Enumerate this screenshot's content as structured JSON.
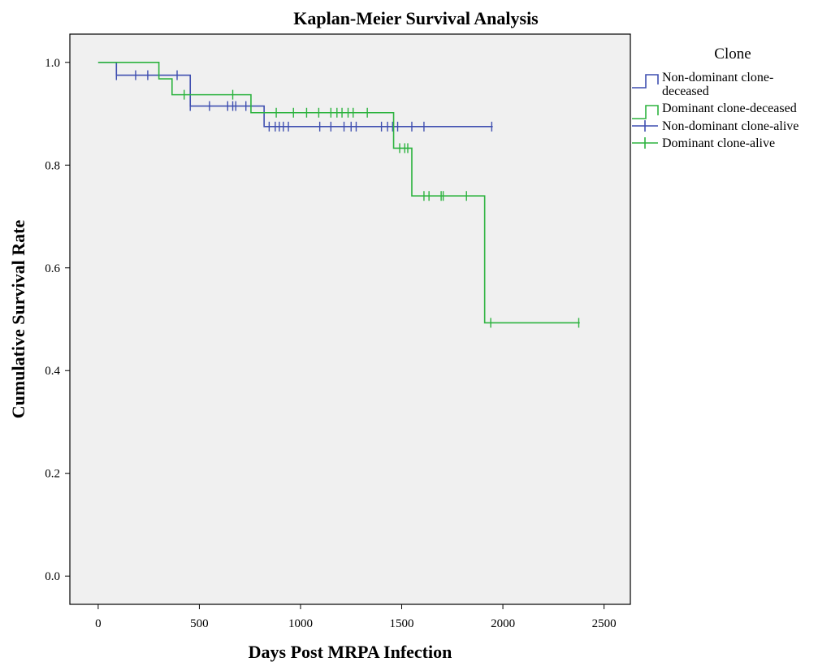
{
  "chart_data": {
    "type": "line",
    "title": "Kaplan-Meier Survival Analysis",
    "xlabel": "Days Post MRPA Infection",
    "ylabel": "Cumulative Survival Rate",
    "xlim": [
      -140,
      2630
    ],
    "ylim": [
      -0.055,
      1.055
    ],
    "x_ticks": [
      0,
      500,
      1000,
      1500,
      2000,
      2500
    ],
    "y_ticks": [
      0.0,
      0.2,
      0.4,
      0.6,
      0.8,
      1.0
    ],
    "x_tick_labels": [
      "0",
      "500",
      "1000",
      "1500",
      "2000",
      "2500"
    ],
    "y_tick_labels": [
      "0.0",
      "0.2",
      "0.4",
      "0.6",
      "0.8",
      "1.0"
    ],
    "grid": false,
    "plot_background": "#f0f0f0",
    "legend": {
      "title": "Clone",
      "placement": "right",
      "entries": [
        {
          "label_lines": [
            "Non-dominant clone-",
            "deceased"
          ],
          "kind": "step",
          "color": "#3f4fb0"
        },
        {
          "label_lines": [
            "Dominant clone-deceased"
          ],
          "kind": "step",
          "color": "#2db33f"
        },
        {
          "label_lines": [
            "Non-dominant clone-alive"
          ],
          "kind": "censor",
          "color": "#3f4fb0"
        },
        {
          "label_lines": [
            "Dominant clone-alive"
          ],
          "kind": "censor",
          "color": "#2db33f"
        }
      ]
    },
    "series": [
      {
        "name": "Non-dominant clone",
        "color": "#3f4fb0",
        "steps": [
          [
            0,
            1.0
          ],
          [
            90,
            0.975
          ],
          [
            455,
            0.915
          ],
          [
            820,
            0.875
          ],
          [
            1950,
            0.875
          ]
        ],
        "censored": [
          [
            90,
            0.975
          ],
          [
            185,
            0.975
          ],
          [
            245,
            0.975
          ],
          [
            390,
            0.975
          ],
          [
            455,
            0.915
          ],
          [
            550,
            0.915
          ],
          [
            640,
            0.915
          ],
          [
            665,
            0.915
          ],
          [
            680,
            0.915
          ],
          [
            730,
            0.915
          ],
          [
            845,
            0.875
          ],
          [
            875,
            0.875
          ],
          [
            895,
            0.875
          ],
          [
            915,
            0.875
          ],
          [
            940,
            0.875
          ],
          [
            1095,
            0.875
          ],
          [
            1150,
            0.875
          ],
          [
            1215,
            0.875
          ],
          [
            1250,
            0.875
          ],
          [
            1275,
            0.875
          ],
          [
            1400,
            0.875
          ],
          [
            1430,
            0.875
          ],
          [
            1455,
            0.875
          ],
          [
            1480,
            0.875
          ],
          [
            1550,
            0.875
          ],
          [
            1610,
            0.875
          ],
          [
            1945,
            0.875
          ]
        ]
      },
      {
        "name": "Dominant clone",
        "color": "#2db33f",
        "steps": [
          [
            0,
            1.0
          ],
          [
            300,
            0.968
          ],
          [
            365,
            0.937
          ],
          [
            755,
            0.902
          ],
          [
            1460,
            0.833
          ],
          [
            1550,
            0.74
          ],
          [
            1910,
            0.493
          ],
          [
            2380,
            0.493
          ]
        ],
        "censored": [
          [
            425,
            0.937
          ],
          [
            665,
            0.937
          ],
          [
            880,
            0.902
          ],
          [
            965,
            0.902
          ],
          [
            1030,
            0.902
          ],
          [
            1090,
            0.902
          ],
          [
            1150,
            0.902
          ],
          [
            1180,
            0.902
          ],
          [
            1205,
            0.902
          ],
          [
            1235,
            0.902
          ],
          [
            1260,
            0.902
          ],
          [
            1330,
            0.902
          ],
          [
            1490,
            0.833
          ],
          [
            1515,
            0.833
          ],
          [
            1530,
            0.833
          ],
          [
            1610,
            0.74
          ],
          [
            1635,
            0.74
          ],
          [
            1695,
            0.74
          ],
          [
            1705,
            0.74
          ],
          [
            1820,
            0.74
          ],
          [
            1940,
            0.493
          ],
          [
            2375,
            0.493
          ]
        ]
      }
    ]
  }
}
